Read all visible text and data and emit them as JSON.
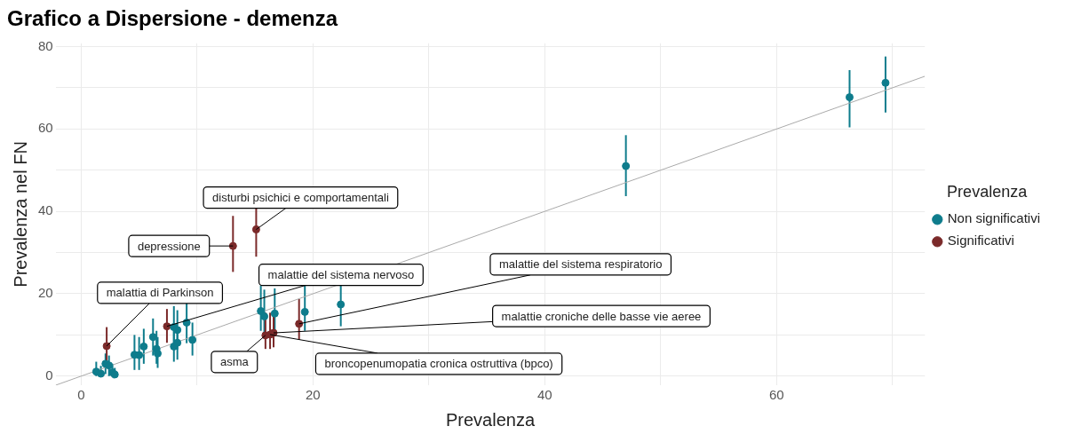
{
  "chart_data": {
    "type": "scatter",
    "title": "Grafico a Dispersione - demenza",
    "xlabel": "Prevalenza",
    "ylabel": "Prevalenza nel FN",
    "legend_title": "Prevalenza",
    "legend": "right",
    "grid": true,
    "marker": "circle",
    "xlim": [
      -2.2,
      72.8
    ],
    "ylim": [
      -2.2,
      80.8
    ],
    "xticks": [
      0,
      {
        "value": 10,
        "label": null
      },
      20,
      {
        "value": 30,
        "label": null
      },
      40,
      {
        "value": 50,
        "label": null
      },
      60,
      {
        "value": 70,
        "label": null
      }
    ],
    "yticks": [
      0,
      {
        "value": 10,
        "label": null
      },
      20,
      {
        "value": 30,
        "label": null
      },
      40,
      {
        "value": 50,
        "label": null
      },
      60,
      {
        "value": 70,
        "label": null
      },
      80
    ],
    "series": [
      {
        "type": "line",
        "marker": "none",
        "color": "#aaaaaa",
        "x": [
          -2.2,
          72.8
        ],
        "values": [
          -2.2,
          72.8
        ]
      },
      {
        "name": "Non significativi",
        "color": "#0e7c8c",
        "x": [
          1.3,
          1.7,
          2.1,
          2.4,
          2.7,
          2.9,
          4.6,
          5.0,
          5.4,
          6.2,
          6.5,
          6.6,
          8.0,
          8.3,
          8.0,
          8.3,
          9.1,
          9.6,
          15.5,
          15.8,
          16.7,
          19.3,
          22.4,
          47.0,
          66.3,
          69.4
        ],
        "values": [
          1.1,
          0.6,
          3.0,
          2.6,
          0.9,
          0.4,
          5.2,
          5.1,
          7.2,
          9.5,
          6.6,
          5.5,
          7.2,
          8.1,
          11.9,
          11.2,
          13.0,
          8.8,
          15.8,
          14.5,
          15.2,
          15.6,
          17.4,
          51.0,
          67.7,
          71.2
        ],
        "errors": [
          [
            0,
            3.5
          ],
          [
            0,
            2.5
          ],
          [
            0.5,
            5.5
          ],
          [
            0,
            5
          ],
          [
            0,
            3
          ],
          [
            0,
            2
          ],
          [
            1.5,
            10
          ],
          [
            1.5,
            9.5
          ],
          [
            3,
            11.5
          ],
          [
            5,
            14
          ],
          [
            3,
            11
          ],
          [
            2,
            9.5
          ],
          [
            3.5,
            11.5
          ],
          [
            4,
            12
          ],
          [
            7,
            17
          ],
          [
            6.5,
            16
          ],
          [
            8,
            18
          ],
          [
            5,
            13
          ],
          [
            11,
            22
          ],
          [
            10,
            21
          ],
          [
            9.9,
            21.3
          ],
          [
            11,
            22
          ],
          [
            12.1,
            22.5
          ],
          [
            43.7,
            58.5
          ],
          [
            60.4,
            74.3
          ],
          [
            64,
            77.6
          ]
        ]
      },
      {
        "name": "Significativi",
        "color": "#7b2a2a",
        "x": [
          2.2,
          7.4,
          13.1,
          15.1,
          15.9,
          16.3,
          16.6,
          18.8
        ],
        "values": [
          7.3,
          12.1,
          31.6,
          35.6,
          9.9,
          10.1,
          10.5,
          12.7
        ],
        "errors": [
          [
            3,
            11.9
          ],
          [
            8.1,
            16.3
          ],
          [
            25.3,
            38.9
          ],
          [
            29,
            42
          ],
          [
            6.6,
            15.4
          ],
          [
            6.6,
            15.4
          ],
          [
            7,
            15.4
          ],
          [
            8.8,
            18.7
          ]
        ]
      }
    ],
    "annotations": [
      {
        "text": "disturbi psichici e comportamentali",
        "x": 15.1,
        "y": 35.6
      },
      {
        "text": "depressione",
        "x": 13.1,
        "y": 31.6
      },
      {
        "text": "malattie del sistema nervoso",
        "x": 7.4,
        "y": 12.1
      },
      {
        "text": "malattia di Parkinson",
        "x": 2.2,
        "y": 7.3
      },
      {
        "text": "malattie del sistema respiratorio",
        "x": 18.8,
        "y": 12.7
      },
      {
        "text": "malattie croniche delle basse vie aeree",
        "x": 16.6,
        "y": 10.5
      },
      {
        "text": "asma",
        "x": 15.9,
        "y": 9.9
      },
      {
        "text": "broncopenumopatia cronica ostruttiva (bpco)",
        "x": 16.3,
        "y": 10.1
      }
    ]
  }
}
